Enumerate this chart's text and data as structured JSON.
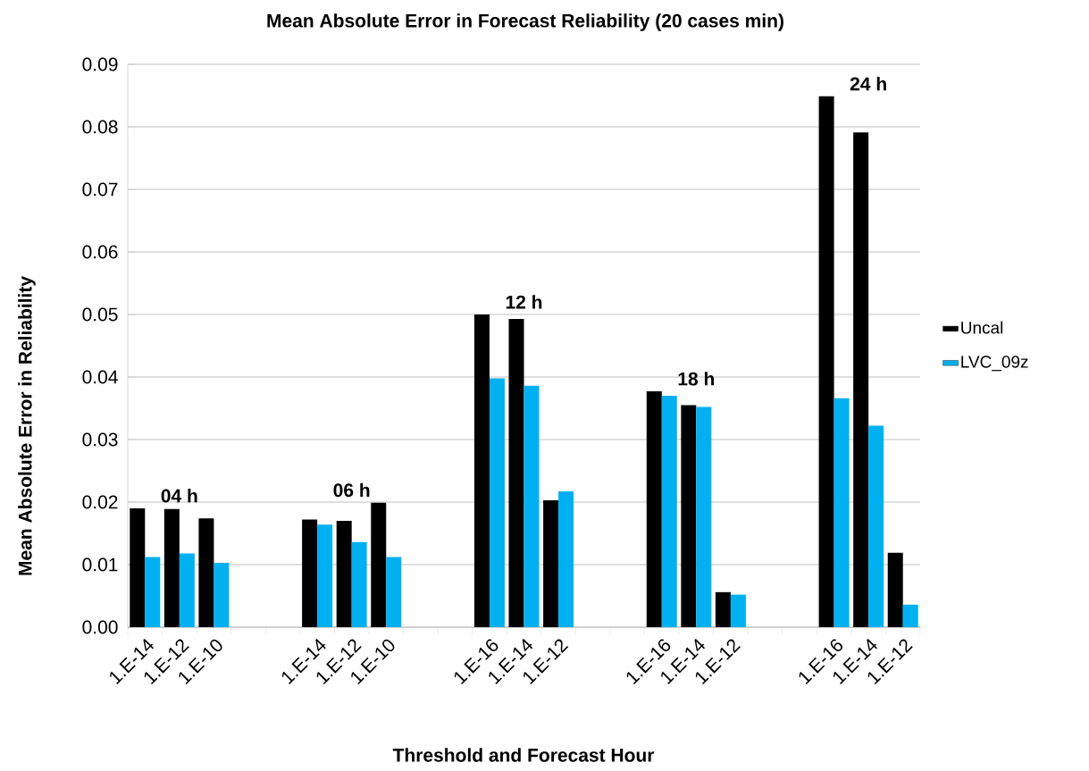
{
  "chart_data": {
    "type": "bar",
    "title": "Mean Absolute Error in Forecast Reliability (20 cases min)",
    "xlabel": "Threshold and Forecast Hour",
    "ylabel": "Mean Absolute Error in Reliability",
    "categories": [
      "1.E-14",
      "1.E-12",
      "1.E-10",
      null,
      null,
      "1.E-14",
      "1.E-12",
      "1.E-10",
      null,
      null,
      "1.E-16",
      "1.E-14",
      "1.E-12",
      null,
      null,
      "1.E-16",
      "1.E-14",
      "1.E-12",
      null,
      null,
      "1.E-16",
      "1.E-14",
      "1.E-12"
    ],
    "series": [
      {
        "name": "Uncal",
        "color": "#000000",
        "values": [
          0.019,
          0.0189,
          0.0174,
          null,
          null,
          0.0172,
          0.017,
          0.0199,
          null,
          null,
          0.05,
          0.0493,
          0.0203,
          null,
          null,
          0.0377,
          0.0355,
          0.0056,
          null,
          null,
          0.0849,
          0.0791,
          0.0119
        ]
      },
      {
        "name": "LVC_09z",
        "color": "#00b0f0",
        "values": [
          0.0112,
          0.0118,
          0.0103,
          null,
          null,
          0.0164,
          0.0136,
          0.0112,
          null,
          null,
          0.0398,
          0.0386,
          0.0217,
          null,
          null,
          0.037,
          0.0352,
          0.0052,
          null,
          null,
          0.0366,
          0.0322,
          0.0036
        ]
      }
    ],
    "annotations": [
      "04 h",
      "06 h",
      "12 h",
      "18 h",
      "24 h"
    ],
    "ylim": [
      0,
      0.09
    ],
    "yticks": [
      {
        "value": 0,
        "label": "0.00"
      },
      {
        "value": 0.01,
        "label": "0.01"
      },
      {
        "value": 0.02,
        "label": "0.02"
      },
      {
        "value": 0.03,
        "label": "0.03"
      },
      {
        "value": 0.04,
        "label": "0.04"
      },
      {
        "value": 0.05,
        "label": "0.05"
      },
      {
        "value": 0.06,
        "label": "0.06"
      },
      {
        "value": 0.07,
        "label": "0.07"
      },
      {
        "value": 0.08,
        "label": "0.08"
      },
      {
        "value": 0.09,
        "label": "0.09"
      }
    ],
    "grid": "y",
    "legend": "right"
  }
}
